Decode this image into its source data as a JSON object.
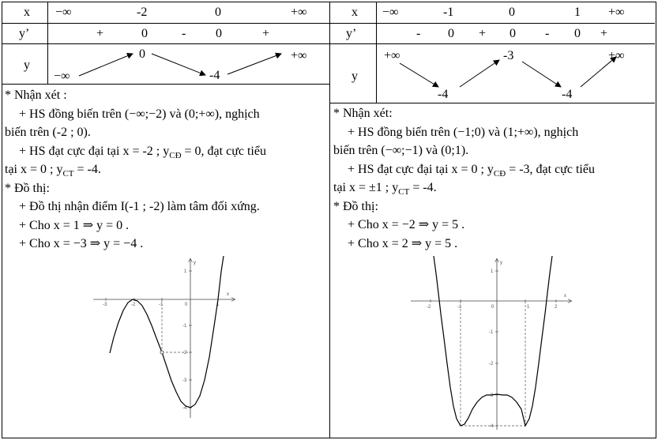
{
  "left": {
    "table": {
      "x_label": "x",
      "x_values": [
        "−∞",
        "-2",
        "0",
        "+∞"
      ],
      "yp_label": "y’",
      "yp_signs": [
        "+",
        "0",
        "-",
        "0",
        "+"
      ],
      "y_label": "y",
      "y_values": [
        "−∞",
        "0",
        "-4",
        "+∞"
      ]
    },
    "notes": {
      "heading": "* Nhận xét :",
      "l1": "+ HS đồng biến trên (−∞;−2) và (0;+∞), nghịch",
      "l2": "biến trên (-2 ; 0).",
      "l3a": "+ HS đạt cực đại tại x = -2 ; y",
      "l3b": "CĐ",
      "l3c": " = 0, đạt cực tiểu",
      "l4a": "tại x = 0 ; y",
      "l4b": "CT",
      "l4c": " = -4.",
      "graph_heading": "* Đồ thị:",
      "g1": "+ Đồ thị nhận điểm I(-1 ; -2) làm tâm đối xứng.",
      "g2": "+ Cho  x = 1 ⇒ y = 0 .",
      "g3": "+ Cho  x = −3 ⇒ y = −4 ."
    },
    "graph": {
      "xticks": [
        "-3",
        "-2",
        "-1",
        "0",
        "1"
      ],
      "yticks": [
        "1",
        "-1",
        "-2",
        "-3",
        "-4"
      ],
      "x_axis": "x",
      "y_axis": "y"
    }
  },
  "right": {
    "table": {
      "x_label": "x",
      "x_values": [
        "−∞",
        "-1",
        "0",
        "1",
        "+∞"
      ],
      "yp_label": "y’",
      "yp_signs": [
        "-",
        "0",
        "+",
        "0",
        "-",
        "0",
        "+"
      ],
      "y_label": "y",
      "y_values": [
        "+∞",
        "-4",
        "-3",
        "-4",
        "+∞"
      ]
    },
    "notes": {
      "heading": "* Nhận xét:",
      "l1": "+ HS đồng biến trên (−1;0) và (1;+∞), nghịch",
      "l2": "biến trên (−∞;−1) và (0;1).",
      "l3a": "+ HS đạt cực đại tại x = 0 ; y",
      "l3b": "CĐ",
      "l3c": " = -3, đạt cực tiểu",
      "l4a": "tại x = ±1 ; y",
      "l4b": "CT",
      "l4c": " = -4.",
      "graph_heading": "* Đồ thị:",
      "g1": "+ Cho  x = −2 ⇒ y = 5 .",
      "g2": "+ Cho  x = 2 ⇒ y = 5 ."
    },
    "graph": {
      "xticks": [
        "-2",
        "-1",
        "0",
        "1",
        "2"
      ],
      "yticks": [
        "1",
        "-1",
        "-2",
        "-3",
        "-4"
      ],
      "x_axis": "x",
      "y_axis": "y"
    }
  }
}
